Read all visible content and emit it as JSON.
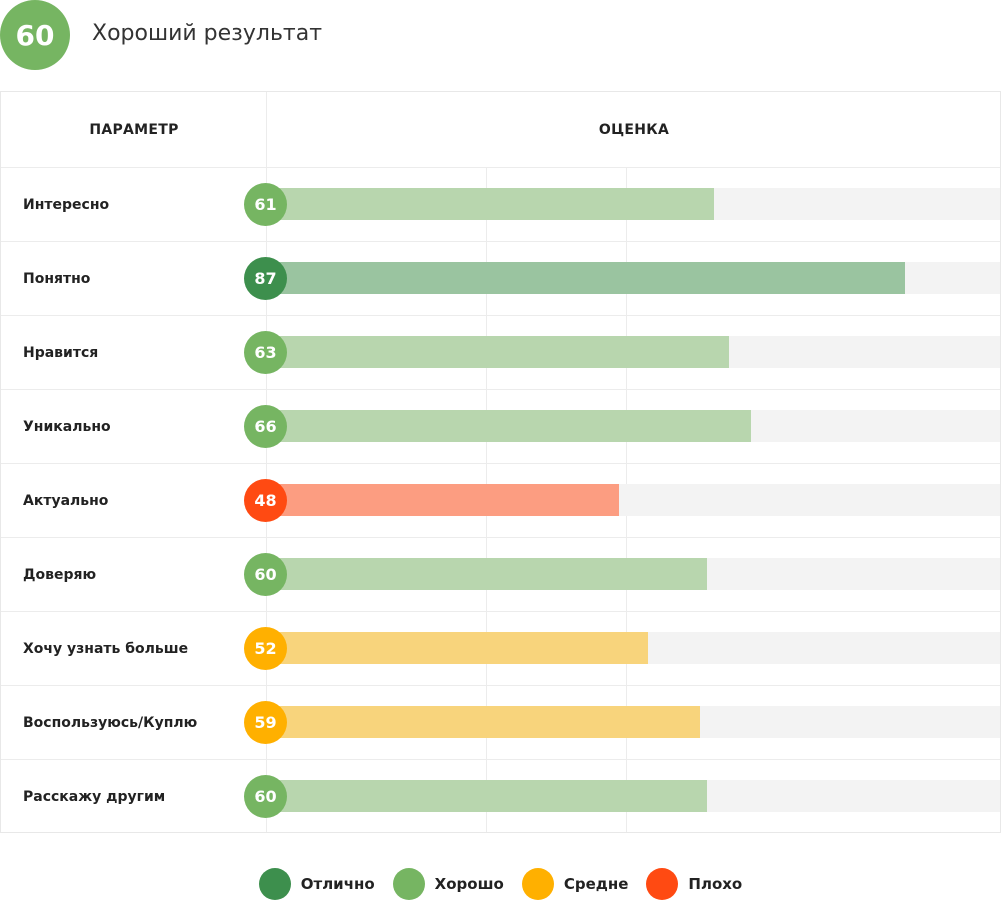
{
  "header": {
    "score": "60",
    "title": "Хороший результат",
    "score_color": "#76b562"
  },
  "table": {
    "col_param": "ПАРАМЕТР",
    "col_score": "ОЦЕНКА"
  },
  "colors": {
    "excellent": {
      "dot": "#3d8f4d",
      "bar": "#9ac4a0"
    },
    "good": {
      "dot": "#76b562",
      "bar": "#b8d6ae"
    },
    "average": {
      "dot": "#ffb000",
      "bar": "#f8d47c"
    },
    "bad": {
      "dot": "#ff4a12",
      "bar": "#fc9d81"
    }
  },
  "chart_data": {
    "type": "bar",
    "orientation": "horizontal",
    "xlim": [
      0,
      100
    ],
    "grid": true,
    "legend_position": "bottom-center",
    "categories": [
      "Интересно",
      "Понятно",
      "Нравится",
      "Уникально",
      "Актуально",
      "Доверяю",
      "Хочу узнать больше",
      "Воспользуюсь/Куплю",
      "Расскажу другим"
    ],
    "values": [
      61,
      87,
      63,
      66,
      48,
      60,
      52,
      59,
      60
    ],
    "value_labels": [
      "61",
      "87",
      "63",
      "66",
      "48",
      "60",
      "52",
      "59",
      "60"
    ],
    "ratings": [
      "good",
      "excellent",
      "good",
      "good",
      "bad",
      "good",
      "average",
      "average",
      "good"
    ]
  },
  "legend": [
    {
      "key": "excellent",
      "label": "Отлично"
    },
    {
      "key": "good",
      "label": "Хорошо"
    },
    {
      "key": "average",
      "label": "Средне"
    },
    {
      "key": "bad",
      "label": "Плохо"
    }
  ]
}
